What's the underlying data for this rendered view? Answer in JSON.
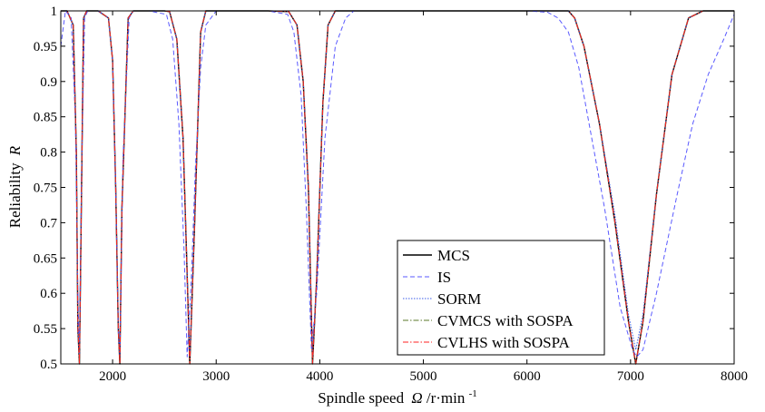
{
  "chart_data": {
    "type": "line",
    "xlabel": "Spindle speed",
    "xlabel_symbol": "Ω",
    "xlabel_unit": "/r·min",
    "xlabel_unit_exp": "-1",
    "ylabel": "Reliability",
    "ylabel_symbol": "R",
    "xlim": [
      1500,
      8000
    ],
    "ylim": [
      0.5,
      1.0
    ],
    "xticks": [
      2000,
      3000,
      4000,
      5000,
      6000,
      7000,
      8000
    ],
    "xtick_labels": [
      "2000",
      "3000",
      "4000",
      "5000",
      "6000",
      "7000",
      "8000"
    ],
    "yticks": [
      0.5,
      0.55,
      0.6,
      0.65,
      0.7,
      0.75,
      0.8,
      0.85,
      0.9,
      0.95,
      1.0
    ],
    "ytick_labels": [
      "0.5",
      "0.55",
      "0.6",
      "0.65",
      "0.7",
      "0.75",
      "0.8",
      "0.85",
      "0.9",
      "0.95",
      "1"
    ],
    "grid": false,
    "legend_position": "bottom-center",
    "series": [
      {
        "name": "MCS",
        "color": "#000000",
        "dash": "solid",
        "x": [
          1500,
          1560,
          1620,
          1650,
          1665,
          1680,
          1720,
          1750,
          1860,
          1960,
          2000,
          2030,
          2055,
          2070,
          2090,
          2150,
          2200,
          2350,
          2500,
          2550,
          2620,
          2680,
          2715,
          2745,
          2790,
          2850,
          2900,
          3100,
          3500,
          3700,
          3780,
          3840,
          3890,
          3930,
          3970,
          4030,
          4080,
          4150,
          4300,
          5000,
          6000,
          6400,
          6460,
          6550,
          6700,
          6850,
          6980,
          7050,
          7120,
          7250,
          7400,
          7560,
          7700,
          7800,
          7900,
          8000
        ],
        "y": [
          1.0,
          1.0,
          0.98,
          0.8,
          0.55,
          0.5,
          0.99,
          1.0,
          1.0,
          0.99,
          0.93,
          0.75,
          0.55,
          0.5,
          0.72,
          0.99,
          1.0,
          1.0,
          1.0,
          0.999,
          0.96,
          0.82,
          0.65,
          0.5,
          0.69,
          0.97,
          1.0,
          1.0,
          1.0,
          0.999,
          0.98,
          0.9,
          0.75,
          0.5,
          0.62,
          0.87,
          0.98,
          1.0,
          1.0,
          1.0,
          1.0,
          1.0,
          0.99,
          0.95,
          0.84,
          0.7,
          0.56,
          0.5,
          0.56,
          0.74,
          0.91,
          0.99,
          1.0,
          1.0,
          1.0,
          1.0
        ]
      },
      {
        "name": "IS",
        "color": "#5a5aff",
        "dash": "5,3",
        "x": [
          1500,
          1545,
          1600,
          1640,
          1665,
          1680,
          1700,
          1730,
          1760,
          1860,
          1960,
          2000,
          2030,
          2055,
          2070,
          2100,
          2160,
          2200,
          2350,
          2520,
          2580,
          2640,
          2690,
          2720,
          2760,
          2800,
          2850,
          2900,
          3000,
          3050,
          3100,
          3500,
          3690,
          3750,
          3820,
          3870,
          3920,
          3970,
          4050,
          4150,
          4250,
          4330,
          4500,
          5000,
          6000,
          6200,
          6300,
          6400,
          6500,
          6600,
          6750,
          6900,
          7020,
          7060,
          7120,
          7250,
          7450,
          7600,
          7750,
          7900,
          8000
        ],
        "y": [
          0.95,
          1.0,
          0.99,
          0.85,
          0.6,
          0.51,
          0.77,
          0.99,
          1.0,
          1.0,
          0.99,
          0.93,
          0.75,
          0.55,
          0.51,
          0.79,
          0.99,
          1.0,
          1.0,
          0.995,
          0.96,
          0.84,
          0.66,
          0.51,
          0.62,
          0.78,
          0.92,
          0.98,
          1.0,
          1.0,
          1.0,
          1.0,
          0.995,
          0.97,
          0.88,
          0.72,
          0.52,
          0.6,
          0.82,
          0.95,
          0.99,
          1.0,
          1.0,
          1.0,
          1.0,
          0.998,
          0.99,
          0.97,
          0.92,
          0.84,
          0.72,
          0.58,
          0.52,
          0.51,
          0.52,
          0.6,
          0.74,
          0.84,
          0.91,
          0.96,
          0.995
        ]
      },
      {
        "name": "SORM",
        "color": "#3a5ce8",
        "dash": "1.5,1.5",
        "x": [
          1500,
          1560,
          1620,
          1650,
          1665,
          1680,
          1720,
          1750,
          1860,
          1960,
          2000,
          2030,
          2055,
          2070,
          2090,
          2150,
          2200,
          2350,
          2500,
          2550,
          2620,
          2680,
          2715,
          2745,
          2790,
          2850,
          2900,
          3100,
          3500,
          3700,
          3780,
          3840,
          3890,
          3930,
          3970,
          4030,
          4080,
          4150,
          4300,
          5000,
          6000,
          6400,
          6460,
          6550,
          6700,
          6850,
          6980,
          7050,
          7120,
          7250,
          7400,
          7560,
          7700,
          7800,
          7900,
          8000
        ],
        "y": [
          1.0,
          1.0,
          0.98,
          0.8,
          0.56,
          0.51,
          0.99,
          1.0,
          1.0,
          0.99,
          0.93,
          0.75,
          0.56,
          0.51,
          0.72,
          0.99,
          1.0,
          1.0,
          1.0,
          0.999,
          0.96,
          0.82,
          0.65,
          0.51,
          0.69,
          0.97,
          1.0,
          1.0,
          1.0,
          0.999,
          0.98,
          0.9,
          0.75,
          0.51,
          0.62,
          0.87,
          0.98,
          1.0,
          1.0,
          1.0,
          1.0,
          1.0,
          0.99,
          0.95,
          0.84,
          0.71,
          0.57,
          0.52,
          0.57,
          0.74,
          0.91,
          0.99,
          1.0,
          1.0,
          1.0,
          1.0
        ]
      },
      {
        "name": "CVMCS with SOSPA",
        "color": "#5a7a2a",
        "dash": "6,2,1.5,2",
        "x": [
          1500,
          1560,
          1620,
          1650,
          1665,
          1680,
          1720,
          1750,
          1860,
          1960,
          2000,
          2030,
          2055,
          2070,
          2090,
          2150,
          2200,
          2350,
          2500,
          2550,
          2620,
          2680,
          2715,
          2745,
          2790,
          2850,
          2900,
          3100,
          3500,
          3700,
          3780,
          3840,
          3890,
          3930,
          3970,
          4030,
          4080,
          4150,
          4300,
          5000,
          6000,
          6400,
          6460,
          6550,
          6700,
          6850,
          6980,
          7050,
          7120,
          7250,
          7400,
          7560,
          7700,
          7800,
          7900,
          8000
        ],
        "y": [
          1.0,
          1.0,
          0.98,
          0.8,
          0.55,
          0.5,
          0.99,
          1.0,
          1.0,
          0.99,
          0.93,
          0.75,
          0.55,
          0.5,
          0.72,
          0.99,
          1.0,
          1.0,
          1.0,
          0.999,
          0.96,
          0.82,
          0.65,
          0.5,
          0.69,
          0.97,
          1.0,
          1.0,
          1.0,
          0.999,
          0.98,
          0.9,
          0.75,
          0.5,
          0.62,
          0.87,
          0.98,
          1.0,
          1.0,
          1.0,
          1.0,
          1.0,
          0.99,
          0.95,
          0.84,
          0.7,
          0.56,
          0.5,
          0.56,
          0.74,
          0.91,
          0.99,
          1.0,
          1.0,
          1.0,
          1.0
        ]
      },
      {
        "name": "CVLHS with SOSPA",
        "color": "#ff2020",
        "dash": "6,2,1.5,2",
        "x": [
          1500,
          1560,
          1620,
          1650,
          1665,
          1680,
          1720,
          1750,
          1860,
          1960,
          2000,
          2030,
          2055,
          2070,
          2090,
          2150,
          2200,
          2350,
          2500,
          2550,
          2620,
          2680,
          2715,
          2745,
          2790,
          2850,
          2900,
          3100,
          3500,
          3700,
          3780,
          3840,
          3890,
          3930,
          3970,
          4030,
          4080,
          4150,
          4300,
          5000,
          6000,
          6400,
          6460,
          6550,
          6700,
          6850,
          6980,
          7050,
          7120,
          7250,
          7400,
          7560,
          7700,
          7800,
          7900,
          8000
        ],
        "y": [
          1.0,
          1.0,
          0.98,
          0.8,
          0.55,
          0.5,
          0.99,
          1.0,
          1.0,
          0.99,
          0.93,
          0.75,
          0.55,
          0.5,
          0.72,
          0.99,
          1.0,
          1.0,
          1.0,
          0.999,
          0.96,
          0.82,
          0.65,
          0.5,
          0.69,
          0.97,
          1.0,
          1.0,
          1.0,
          0.999,
          0.98,
          0.9,
          0.75,
          0.5,
          0.62,
          0.87,
          0.98,
          1.0,
          1.0,
          1.0,
          1.0,
          1.0,
          0.99,
          0.95,
          0.84,
          0.7,
          0.56,
          0.5,
          0.56,
          0.74,
          0.91,
          0.99,
          1.0,
          1.0,
          1.0,
          1.0
        ]
      }
    ]
  }
}
